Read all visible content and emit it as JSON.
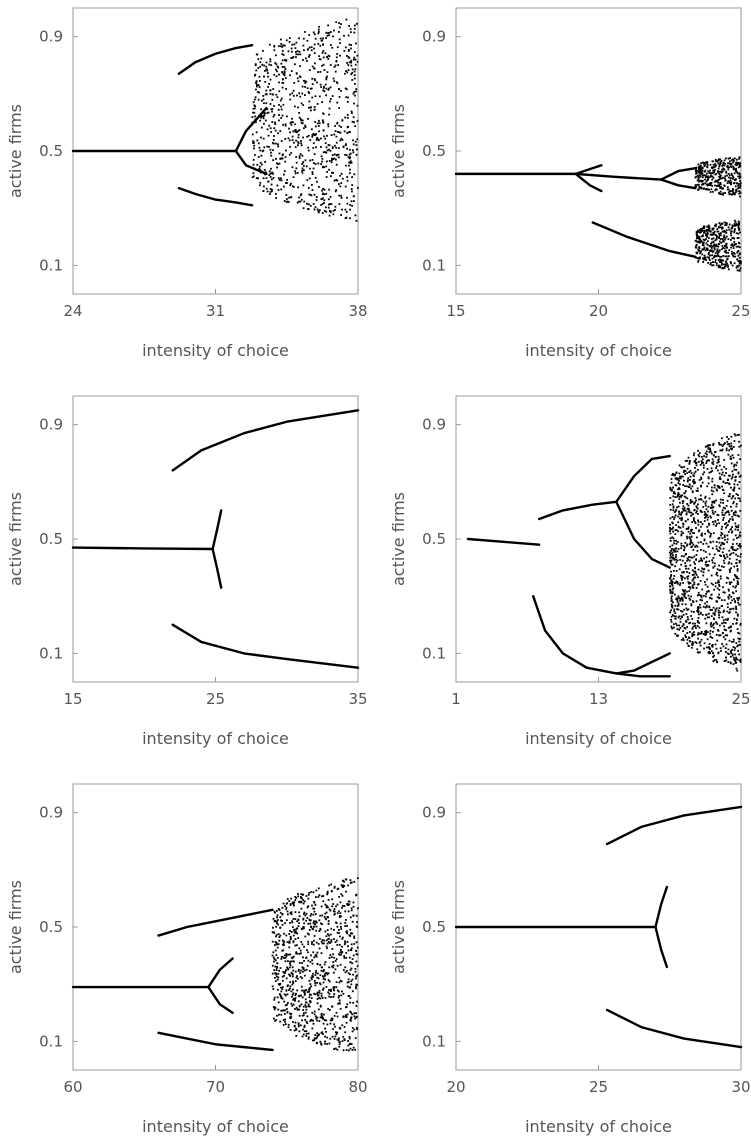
{
  "chart_data": [
    {
      "type": "scatter",
      "xlabel": "intensity of choice",
      "ylabel": "active firms",
      "xlim": [
        24,
        38
      ],
      "ylim": [
        0,
        1
      ],
      "xticks": [
        "24",
        "31",
        "38"
      ],
      "yticks": [
        "0.1",
        "0.5",
        "0.9"
      ],
      "point_color": "#000000",
      "branches": [
        {
          "x": [
            24,
            27,
            30,
            31,
            32
          ],
          "y": [
            0.5,
            0.5,
            0.5,
            0.5,
            0.5
          ]
        },
        {
          "x": [
            32,
            32.5,
            33.5
          ],
          "y": [
            0.5,
            0.57,
            0.65
          ]
        },
        {
          "x": [
            32,
            32.5,
            33.5
          ],
          "y": [
            0.5,
            0.45,
            0.42
          ]
        },
        {
          "x": [
            29.2,
            30,
            31,
            32,
            32.8
          ],
          "y": [
            0.77,
            0.81,
            0.84,
            0.86,
            0.87
          ]
        },
        {
          "x": [
            29.2,
            30,
            31,
            32,
            32.8
          ],
          "y": [
            0.37,
            0.35,
            0.33,
            0.32,
            0.31
          ]
        }
      ],
      "chaos_regions": [
        {
          "x_start": 32.8,
          "x_end": 38,
          "y_low": 0.25,
          "y_high": 0.97,
          "density": 900
        }
      ]
    },
    {
      "type": "scatter",
      "xlabel": "intensity of choice",
      "ylabel": "active firms",
      "xlim": [
        15,
        25
      ],
      "ylim": [
        0,
        1
      ],
      "xticks": [
        "15",
        "20",
        "25"
      ],
      "yticks": [
        "0.1",
        "0.5",
        "0.9"
      ],
      "point_color": "#000000",
      "branches": [
        {
          "x": [
            15,
            17,
            19.2
          ],
          "y": [
            0.42,
            0.42,
            0.42
          ]
        },
        {
          "x": [
            19.2,
            19.8,
            20.1
          ],
          "y": [
            0.42,
            0.44,
            0.45
          ]
        },
        {
          "x": [
            19.2,
            19.7,
            20.1
          ],
          "y": [
            0.42,
            0.38,
            0.36
          ]
        },
        {
          "x": [
            19.2,
            20.5,
            22.2
          ],
          "y": [
            0.42,
            0.41,
            0.4
          ]
        },
        {
          "x": [
            22.2,
            22.8,
            23.4
          ],
          "y": [
            0.4,
            0.43,
            0.44
          ]
        },
        {
          "x": [
            22.2,
            22.8,
            23.4
          ],
          "y": [
            0.4,
            0.38,
            0.37
          ]
        },
        {
          "x": [
            19.8,
            21,
            22.5,
            23.4
          ],
          "y": [
            0.25,
            0.2,
            0.15,
            0.13
          ]
        }
      ],
      "chaos_regions": [
        {
          "x_start": 23.4,
          "x_end": 25,
          "y_low": 0.34,
          "y_high": 0.48,
          "density": 350
        },
        {
          "x_start": 23.4,
          "x_end": 25,
          "y_low": 0.08,
          "y_high": 0.26,
          "density": 400
        }
      ]
    },
    {
      "type": "scatter",
      "xlabel": "intensity of choice",
      "ylabel": "active firms",
      "xlim": [
        15,
        35
      ],
      "ylim": [
        0,
        1
      ],
      "xticks": [
        "15",
        "25",
        "35"
      ],
      "yticks": [
        "0.1",
        "0.5",
        "0.9"
      ],
      "point_color": "#000000",
      "branches": [
        {
          "x": [
            15,
            20,
            24.8
          ],
          "y": [
            0.47,
            0.467,
            0.465
          ]
        },
        {
          "x": [
            24.8,
            25.1,
            25.4
          ],
          "y": [
            0.465,
            0.53,
            0.6
          ]
        },
        {
          "x": [
            24.8,
            25.1,
            25.4
          ],
          "y": [
            0.465,
            0.4,
            0.33
          ]
        },
        {
          "x": [
            22,
            24,
            27,
            30,
            35
          ],
          "y": [
            0.74,
            0.81,
            0.87,
            0.91,
            0.95
          ]
        },
        {
          "x": [
            22,
            24,
            27,
            30,
            35
          ],
          "y": [
            0.2,
            0.14,
            0.1,
            0.08,
            0.05
          ]
        }
      ],
      "chaos_regions": []
    },
    {
      "type": "scatter",
      "xlabel": "intensity of choice",
      "ylabel": "active firms",
      "xlim": [
        1,
        25
      ],
      "ylim": [
        0,
        1
      ],
      "xticks": [
        "1",
        "13",
        "25"
      ],
      "yticks": [
        "0.1",
        "0.5",
        "0.9"
      ],
      "point_color": "#000000",
      "branches": [
        {
          "x": [
            2,
            5,
            8
          ],
          "y": [
            0.5,
            0.49,
            0.48
          ]
        },
        {
          "x": [
            8,
            10,
            12.5,
            14.5
          ],
          "y": [
            0.57,
            0.6,
            0.62,
            0.63
          ]
        },
        {
          "x": [
            14.5,
            16,
            17.5,
            19
          ],
          "y": [
            0.63,
            0.72,
            0.78,
            0.79
          ]
        },
        {
          "x": [
            14.5,
            16,
            17.5,
            19
          ],
          "y": [
            0.63,
            0.5,
            0.43,
            0.4
          ]
        },
        {
          "x": [
            7.5,
            8.5,
            10,
            12,
            14.5,
            16,
            17.5,
            19
          ],
          "y": [
            0.3,
            0.18,
            0.1,
            0.05,
            0.03,
            0.04,
            0.07,
            0.1
          ]
        },
        {
          "x": [
            14.5,
            16.5,
            19
          ],
          "y": [
            0.03,
            0.02,
            0.02
          ]
        }
      ],
      "chaos_regions": [
        {
          "x_start": 19,
          "x_end": 25,
          "y_low": 0.03,
          "y_high": 0.88,
          "density": 1400
        }
      ]
    },
    {
      "type": "scatter",
      "xlabel": "intensity of choice",
      "ylabel": "active firms",
      "xlim": [
        60,
        80
      ],
      "ylim": [
        0,
        1
      ],
      "xticks": [
        "60",
        "70",
        "80"
      ],
      "yticks": [
        "0.1",
        "0.5",
        "0.9"
      ],
      "point_color": "#000000",
      "branches": [
        {
          "x": [
            60,
            65,
            69.5
          ],
          "y": [
            0.29,
            0.29,
            0.29
          ]
        },
        {
          "x": [
            69.5,
            70.3,
            71.2
          ],
          "y": [
            0.29,
            0.35,
            0.39
          ]
        },
        {
          "x": [
            69.5,
            70.3,
            71.2
          ],
          "y": [
            0.29,
            0.23,
            0.2
          ]
        },
        {
          "x": [
            66,
            68,
            70,
            72,
            74
          ],
          "y": [
            0.47,
            0.5,
            0.52,
            0.54,
            0.56
          ]
        },
        {
          "x": [
            66,
            68,
            70,
            72,
            74
          ],
          "y": [
            0.13,
            0.11,
            0.09,
            0.08,
            0.07
          ]
        }
      ],
      "chaos_regions": [
        {
          "x_start": 74,
          "x_end": 80,
          "y_low": 0.05,
          "y_high": 0.68,
          "density": 1000
        }
      ]
    },
    {
      "type": "scatter",
      "xlabel": "intensity of choice",
      "ylabel": "active firms",
      "xlim": [
        20,
        30
      ],
      "ylim": [
        0,
        1
      ],
      "xticks": [
        "20",
        "25",
        "30"
      ],
      "yticks": [
        "0.1",
        "0.5",
        "0.9"
      ],
      "point_color": "#000000",
      "branches": [
        {
          "x": [
            20,
            24,
            27
          ],
          "y": [
            0.5,
            0.5,
            0.5
          ]
        },
        {
          "x": [
            27,
            27.2,
            27.4
          ],
          "y": [
            0.5,
            0.58,
            0.64
          ]
        },
        {
          "x": [
            27,
            27.2,
            27.4
          ],
          "y": [
            0.5,
            0.42,
            0.36
          ]
        },
        {
          "x": [
            25.3,
            26.5,
            28,
            30
          ],
          "y": [
            0.79,
            0.85,
            0.89,
            0.92
          ]
        },
        {
          "x": [
            25.3,
            26.5,
            28,
            30
          ],
          "y": [
            0.21,
            0.15,
            0.11,
            0.08
          ]
        }
      ],
      "chaos_regions": []
    }
  ]
}
